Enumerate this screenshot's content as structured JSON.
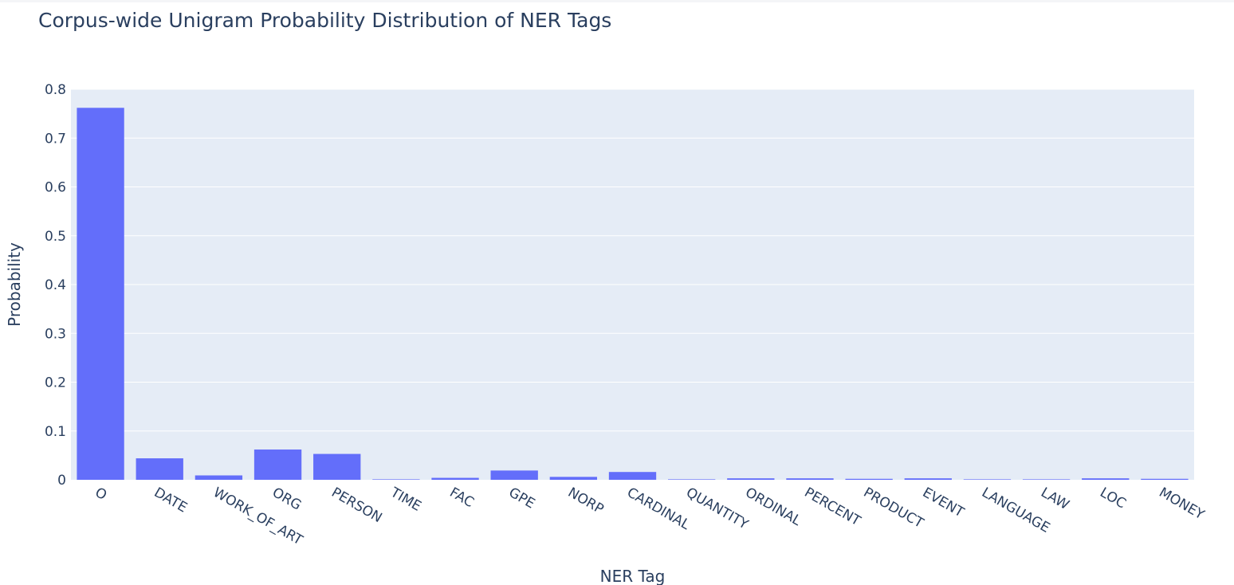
{
  "chart_data": {
    "type": "bar",
    "title": "Corpus-wide Unigram Probability Distribution of NER Tags",
    "xlabel": "NER Tag",
    "ylabel": "Probability",
    "categories": [
      "O",
      "DATE",
      "WORK_OF_ART",
      "ORG",
      "PERSON",
      "TIME",
      "FAC",
      "GPE",
      "NORP",
      "CARDINAL",
      "QUANTITY",
      "ORDINAL",
      "PERCENT",
      "PRODUCT",
      "EVENT",
      "LANGUAGE",
      "LAW",
      "LOC",
      "MONEY"
    ],
    "values": [
      0.762,
      0.044,
      0.009,
      0.062,
      0.053,
      0.001,
      0.004,
      0.019,
      0.006,
      0.016,
      0.001,
      0.003,
      0.003,
      0.002,
      0.003,
      0.001,
      0.001,
      0.003,
      0.002
    ],
    "ylim": [
      0,
      0.8
    ],
    "yticks": [
      0,
      0.1,
      0.2,
      0.3,
      0.4,
      0.5,
      0.6,
      0.7,
      0.8
    ],
    "ytick_labels": [
      "0",
      "0.1",
      "0.2",
      "0.3",
      "0.4",
      "0.5",
      "0.6",
      "0.7",
      "0.8"
    ],
    "grid": true,
    "colors": {
      "bar": "#636efa",
      "plot_bg": "#e5ecf6",
      "grid": "#ffffff",
      "text": "#2a3f5f"
    }
  }
}
